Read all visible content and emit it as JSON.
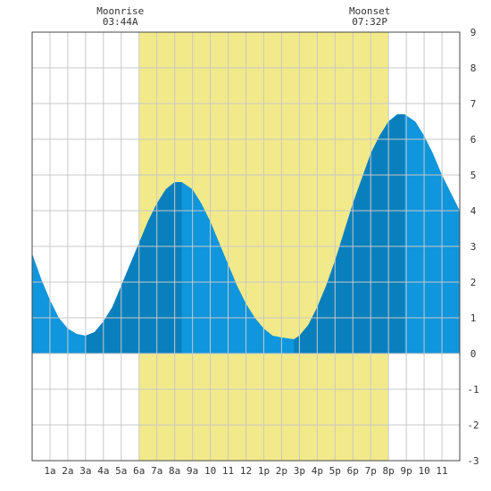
{
  "chart_data": {
    "type": "area",
    "annotations": [
      {
        "label": "Moonrise",
        "time": "03:44A",
        "hour": 6.0
      },
      {
        "label": "Moonset",
        "time": "07:32P",
        "hour": 20.0
      }
    ],
    "xlim": [
      0,
      24
    ],
    "ylim": [
      -3,
      9
    ],
    "x_tick_labels": [
      "1a",
      "2a",
      "3a",
      "4a",
      "5a",
      "6a",
      "7a",
      "8a",
      "9a",
      "10",
      "11",
      "12",
      "1p",
      "2p",
      "3p",
      "4p",
      "5p",
      "6p",
      "7p",
      "8p",
      "9p",
      "10",
      "11"
    ],
    "y_tick_labels": [
      "9",
      "8",
      "7",
      "6",
      "5",
      "4",
      "3",
      "2",
      "1",
      "0",
      "-1",
      "-2",
      "-3"
    ],
    "grid": true,
    "moon_up_span": [
      6.0,
      20.0
    ],
    "colors": {
      "tide_fill": "#0f96dc",
      "tide_fill_dark": "#0a7fbd",
      "moon_band": "#f2ea8a",
      "grid": "#c8c8c8",
      "frame": "#444444"
    },
    "tide_extremes": [
      {
        "type": "low",
        "hour": 3.0,
        "height": 0.5
      },
      {
        "type": "high",
        "hour": 8.4,
        "height": 4.8
      },
      {
        "type": "low",
        "hour": 14.7,
        "height": 0.4
      },
      {
        "type": "high",
        "hour": 20.9,
        "height": 6.7
      }
    ],
    "series": [
      {
        "x": [
          0,
          0.5,
          1,
          1.5,
          2,
          2.5,
          3,
          3.5,
          4,
          4.5,
          5,
          5.5,
          6,
          6.5,
          7,
          7.5,
          8,
          8.4,
          9,
          9.5,
          10,
          10.5,
          11,
          11.5,
          12,
          12.5,
          13,
          13.5,
          14,
          14.7,
          15,
          15.5,
          16,
          16.5,
          17,
          17.5,
          18,
          18.5,
          19,
          19.5,
          20,
          20.5,
          20.9,
          21.5,
          22,
          22.5,
          23,
          23.5,
          24
        ],
        "values": [
          2.8,
          2.1,
          1.5,
          1.0,
          0.7,
          0.55,
          0.5,
          0.6,
          0.9,
          1.3,
          1.9,
          2.5,
          3.1,
          3.7,
          4.2,
          4.6,
          4.8,
          4.8,
          4.6,
          4.2,
          3.7,
          3.1,
          2.5,
          1.9,
          1.4,
          1.0,
          0.7,
          0.5,
          0.45,
          0.4,
          0.5,
          0.8,
          1.3,
          1.9,
          2.6,
          3.4,
          4.2,
          4.9,
          5.6,
          6.1,
          6.5,
          6.7,
          6.7,
          6.5,
          6.1,
          5.6,
          5.0,
          4.5,
          4.0
        ]
      }
    ]
  }
}
